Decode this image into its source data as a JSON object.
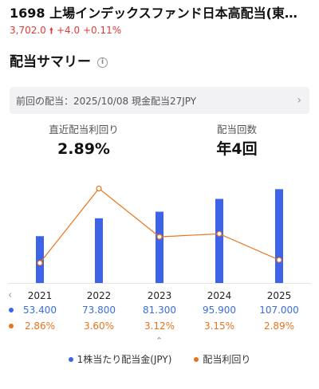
{
  "header": {
    "title": "1698  上場インデックスファンド日本高配当(東…",
    "price": "3,702.0",
    "change": "+4.0",
    "change_pct": "+0.11%"
  },
  "section": {
    "title": "配当サマリー",
    "info_icon": "info-icon"
  },
  "last_dividend": {
    "text": "前回の配当：2025/10/08 現金配当27JPY",
    "icon": "chevron-right-icon"
  },
  "stats": {
    "yield_label": "直近配当利回り",
    "yield_value": "2.89%",
    "count_label": "配当回数",
    "count_value": "年4回"
  },
  "colors": {
    "bar": "#3d63e8",
    "line": "#e8731c",
    "up": "#e23a3a"
  },
  "chart_data": {
    "type": "bar",
    "categories": [
      "2021",
      "2022",
      "2023",
      "2024",
      "2025"
    ],
    "series": [
      {
        "name": "1株当たり配当金(JPY)",
        "values": [
          53.4,
          73.8,
          81.3,
          95.9,
          107.0
        ],
        "display": [
          "53.400",
          "73.800",
          "81.300",
          "95.900",
          "107.000"
        ]
      },
      {
        "name": "配当利回り",
        "type": "line",
        "values": [
          2.86,
          3.6,
          3.12,
          3.15,
          2.89
        ],
        "display": [
          "2.86%",
          "3.60%",
          "3.12%",
          "3.15%",
          "2.89%"
        ]
      }
    ],
    "legend": "bottom-center"
  }
}
